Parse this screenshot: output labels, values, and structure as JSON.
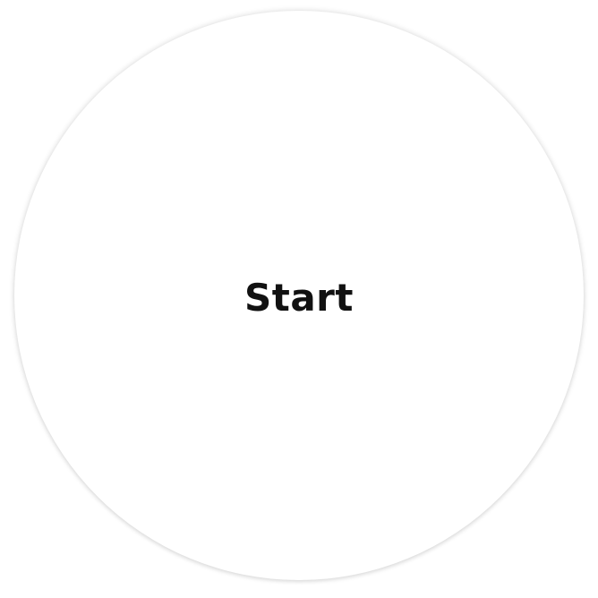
{
  "start_button": {
    "label": "Start"
  },
  "colors": {
    "background": "#ffffff",
    "circle_fill": "#ffffff",
    "label_text": "#111111"
  }
}
